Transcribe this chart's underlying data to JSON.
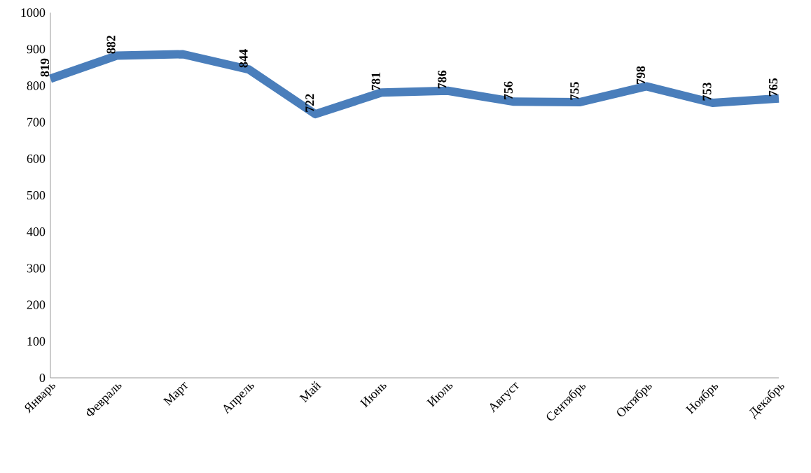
{
  "chart_data": {
    "type": "line",
    "categories": [
      "Январь",
      "Февраль",
      "Март",
      "Апрель",
      "Май",
      "Июнь",
      "Июль",
      "Август",
      "Сентябрь",
      "Октябрь",
      "Ноябрь",
      "Декабрь"
    ],
    "values": [
      819,
      882,
      886,
      844,
      722,
      781,
      786,
      756,
      755,
      798,
      753,
      765
    ],
    "value_labels": [
      "819",
      "882",
      null,
      "844",
      "722",
      "781",
      "786",
      "756",
      "755",
      "798",
      "753",
      "765"
    ],
    "color": "#4a7ebb",
    "ylim": [
      0,
      1000
    ],
    "yticks": [
      0,
      100,
      200,
      300,
      400,
      500,
      600,
      700,
      800,
      900,
      1000
    ],
    "grid": false,
    "marker": "none",
    "line_style": "solid"
  }
}
